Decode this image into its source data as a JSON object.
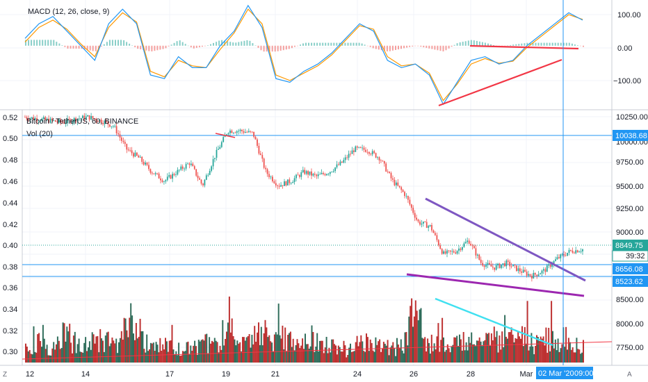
{
  "macd_panel": {
    "legend": "MACD (12, 26, close, 9)",
    "ticks": [
      "100.00",
      "0.00",
      "−100.00"
    ]
  },
  "price_panel": {
    "legend_symbol": "Bitcoin / TetherUS, 60, BINANCE",
    "legend_volume": "Vol (20)",
    "right_ticks": [
      "10250.00",
      "10000.00",
      "9750.00",
      "9500.00",
      "9250.00",
      "9000.00",
      "8750.00",
      "8500.00",
      "8250.00",
      "8000.00",
      "7750.00"
    ],
    "left_ticks": [
      "0.52",
      "0.50",
      "0.48",
      "0.46",
      "0.44",
      "0.42",
      "0.40",
      "0.38",
      "0.36",
      "0.34",
      "0.32",
      "0.30"
    ],
    "price_labels": {
      "resistance": "10038.68",
      "last_price": "8849.75",
      "countdown": "39:32",
      "support_1": "8656.08",
      "support_2": "8523.62"
    }
  },
  "x_axis": {
    "labels": [
      "12",
      "14",
      "17",
      "19",
      "21",
      "24",
      "26",
      "28",
      "Mar"
    ],
    "crosshair_date": "02 Mar '20",
    "crosshair_time": "09:00"
  },
  "bottom_bar": {
    "left_button": "Z",
    "right_button": "A"
  },
  "colors": {
    "up": "#26a69a",
    "down": "#ef5350",
    "macd_line": "#2196f3",
    "signal_line": "#ff9800",
    "hline": "#2196f3",
    "wedge_upper": "#7e57c2",
    "wedge_lower": "#9c27b0",
    "trend_red": "#f23645",
    "trend_cyan": "#40e0f0"
  },
  "chart_data": [
    {
      "type": "line",
      "title": "MACD (12, 26, close, 9)",
      "ylim": [
        -175,
        125
      ],
      "series": [
        {
          "name": "MACD",
          "values": [
            20,
            60,
            80,
            40,
            0,
            -40,
            60,
            100,
            60,
            -80,
            -90,
            -30,
            -60,
            -60,
            0,
            40,
            110,
            50,
            -90,
            -100,
            -70,
            -50,
            -20,
            20,
            60,
            40,
            -40,
            -60,
            -50,
            -80,
            -160,
            -100,
            -40,
            -30,
            -50,
            -40,
            0,
            30,
            60,
            90,
            70
          ]
        },
        {
          "name": "Signal",
          "values": [
            10,
            50,
            70,
            45,
            5,
            -30,
            50,
            90,
            65,
            -70,
            -85,
            -40,
            -55,
            -60,
            -10,
            35,
            100,
            60,
            -80,
            -95,
            -75,
            -55,
            -25,
            15,
            55,
            45,
            -30,
            -55,
            -50,
            -75,
            -150,
            -105,
            -50,
            -35,
            -48,
            -42,
            -5,
            25,
            55,
            85,
            72
          ]
        }
      ]
    },
    {
      "type": "line",
      "title": "Bitcoin / TetherUS, 60, BINANCE",
      "ylim": [
        7580,
        10380
      ],
      "values": [
        10300,
        10280,
        10260,
        10240,
        10280,
        10300,
        10260,
        10200,
        9950,
        9850,
        9700,
        9600,
        9700,
        9800,
        9550,
        9880,
        10150,
        10150,
        10120,
        9700,
        9550,
        9600,
        9700,
        9650,
        9700,
        9800,
        9950,
        9940,
        9850,
        9600,
        9450,
        9150,
        9100,
        8800,
        8830,
        8950,
        8700,
        8650,
        8700,
        8620,
        8560,
        8620,
        8750,
        8830,
        8849.75
      ],
      "horizontal_lines": [
        10038.68,
        8656.08,
        8523.62
      ]
    },
    {
      "type": "bar",
      "title": "Vol (20)",
      "values": [
        30,
        40,
        25,
        60,
        35,
        50,
        45,
        30,
        80,
        40,
        30,
        35,
        25,
        30,
        40,
        30,
        60,
        30,
        90,
        40,
        60,
        35,
        50,
        35,
        30,
        25,
        45,
        40,
        30,
        35,
        100,
        45,
        35,
        40,
        45,
        35,
        50,
        40,
        55,
        40,
        45,
        50,
        55,
        30
      ]
    }
  ]
}
